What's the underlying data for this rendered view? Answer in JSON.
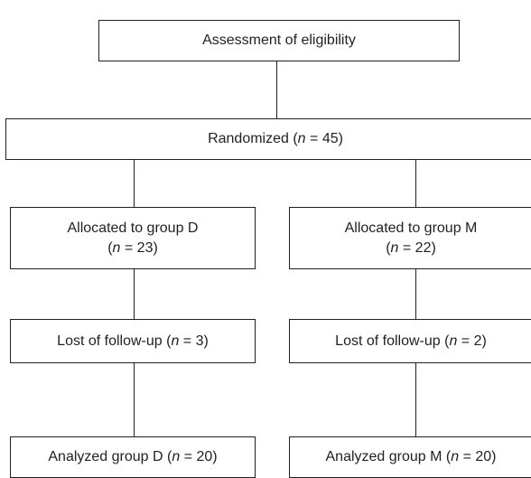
{
  "diagram": {
    "assessment": {
      "label": "Assessment of eligibility"
    },
    "randomized": {
      "label": "Randomized (",
      "n_var": "n",
      "n_eq": " = 45)"
    },
    "group_d": {
      "allocated": {
        "line1": "Allocated to group D",
        "line2_pre": "(",
        "n_var": "n",
        "line2_post": " = 23)"
      },
      "lost": {
        "label": "Lost of follow-up (",
        "n_var": "n",
        "n_eq": " = 3)"
      },
      "analyzed": {
        "label": "Analyzed group D (",
        "n_var": "n",
        "n_eq": " = 20)"
      }
    },
    "group_m": {
      "allocated": {
        "line1": "Allocated to group M",
        "line2_pre": "(",
        "n_var": "n",
        "line2_post": " = 22)"
      },
      "lost": {
        "label": "Lost of follow-up (",
        "n_var": "n",
        "n_eq": " = 2)"
      },
      "analyzed": {
        "label": "Analyzed group M (",
        "n_var": "n",
        "n_eq": " = 20)"
      }
    }
  }
}
